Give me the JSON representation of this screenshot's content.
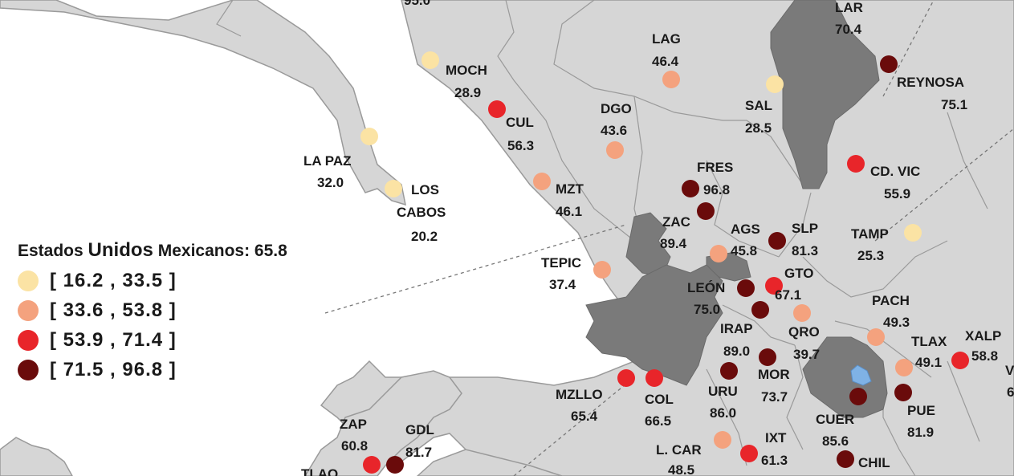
{
  "colors": {
    "sea": "#ffffff",
    "land": "#d6d6d6",
    "highlight_region": "#7a7a7a",
    "border": "#9a9a9a",
    "low": "#fbe3a4",
    "mid_low": "#f4a27e",
    "mid_high": "#e8252a",
    "high": "#6a0b0b",
    "water_body": "#7fb2e5"
  },
  "legend": {
    "title_prefix": "Estados",
    "title_big": "Unidos",
    "title_suffix": "Mexicanos: 65.8",
    "ranges": [
      {
        "label": "[ 16.2 , 33.5 ]",
        "class": "low"
      },
      {
        "label": "[ 33.6 , 53.8 ]",
        "class": "mid_low"
      },
      {
        "label": "[ 53.9 , 71.4 ]",
        "class": "mid_high"
      },
      {
        "label": "[ 71.5 , 96.8 ]",
        "class": "high"
      }
    ]
  },
  "cities": [
    {
      "name": "MOCH",
      "value": "28.9",
      "class": "low"
    },
    {
      "name": "CUL",
      "value": "56.3",
      "class": "mid_high"
    },
    {
      "name": "LAG",
      "value": "46.4",
      "class": "mid_low"
    },
    {
      "name": "DGO",
      "value": "43.6",
      "class": "mid_low"
    },
    {
      "name": "LAR",
      "value": "70.4",
      "class": "mid_high"
    },
    {
      "name": "REYNOSA",
      "value": "75.1",
      "class": "high"
    },
    {
      "name": "SAL",
      "value": "28.5",
      "class": "low"
    },
    {
      "name": "LA PAZ",
      "value": "32.0",
      "class": "low"
    },
    {
      "name": "LOS CABOS",
      "value": "20.2",
      "class": "low"
    },
    {
      "name": "MZT",
      "value": "46.1",
      "class": "mid_low"
    },
    {
      "name": "FRES",
      "value": "96.8",
      "class": "high"
    },
    {
      "name": "CD. VIC",
      "value": "55.9",
      "class": "mid_high"
    },
    {
      "name": "ZAC",
      "value": "89.4",
      "class": "high"
    },
    {
      "name": "AGS",
      "value": "45.8",
      "class": "mid_low"
    },
    {
      "name": "SLP",
      "value": "81.3",
      "class": "high"
    },
    {
      "name": "TAMP",
      "value": "25.3",
      "class": "low"
    },
    {
      "name": "TEPIC",
      "value": "37.4",
      "class": "mid_low"
    },
    {
      "name": "GTO",
      "value": "67.1",
      "class": "mid_high"
    },
    {
      "name": "LEÓN",
      "value": "75.0",
      "class": "high"
    },
    {
      "name": "PACH",
      "value": "49.3",
      "class": "mid_low"
    },
    {
      "name": "IRAP",
      "value": "89.0",
      "class": "high"
    },
    {
      "name": "QRO",
      "value": "39.7",
      "class": "mid_low"
    },
    {
      "name": "TLAX",
      "value": "49.1",
      "class": "mid_low"
    },
    {
      "name": "XALP",
      "value": "58.8",
      "class": "mid_high"
    },
    {
      "name": "MOR",
      "value": "73.7",
      "class": "high"
    },
    {
      "name": "URU",
      "value": "86.0",
      "class": "high"
    },
    {
      "name": "MZLLO",
      "value": "65.4",
      "class": "mid_high"
    },
    {
      "name": "COL",
      "value": "66.5",
      "class": "mid_high"
    },
    {
      "name": "PUE",
      "value": "81.9",
      "class": "high"
    },
    {
      "name": "CUER",
      "value": "85.6",
      "class": "high"
    },
    {
      "name": "ZAP",
      "value": "60.8",
      "class": "mid_high"
    },
    {
      "name": "GDL",
      "value": "81.7",
      "class": "high"
    },
    {
      "name": "L. CAR",
      "value": "48.5",
      "class": "mid_low"
    },
    {
      "name": "IXT",
      "value": "61.3",
      "class": "mid_high"
    },
    {
      "name": "CHIL",
      "value": "",
      "class": "high"
    },
    {
      "name": "TLAQ",
      "value": "",
      "class": "mid_high"
    }
  ],
  "partial_labels": {
    "top_value": "95.0",
    "right_v": "V",
    "right_6": "6"
  }
}
